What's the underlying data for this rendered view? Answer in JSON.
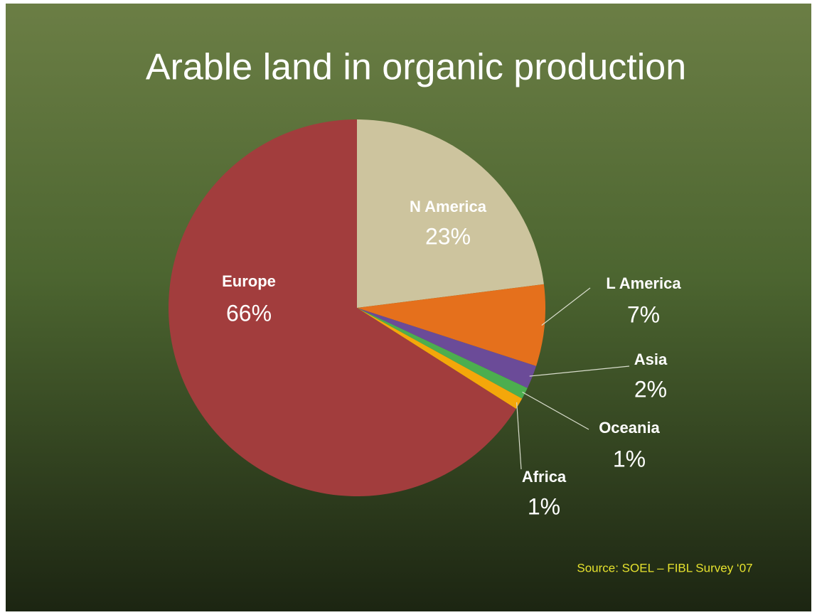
{
  "chart_data": {
    "type": "pie",
    "title": "Arable land in organic production",
    "categories": [
      "N America",
      "L America",
      "Asia",
      "Oceania",
      "Africa",
      "Europe"
    ],
    "values": [
      23,
      7,
      2,
      1,
      1,
      66
    ],
    "value_labels": [
      "23%",
      "7%",
      "2%",
      "1%",
      "1%",
      "66%"
    ],
    "colors": [
      "#cdc49e",
      "#e5701c",
      "#6b4b98",
      "#4cae4f",
      "#f4a70a",
      "#a23d3d"
    ],
    "source": "Source: SOEL – FIBL Survey ‘07"
  }
}
